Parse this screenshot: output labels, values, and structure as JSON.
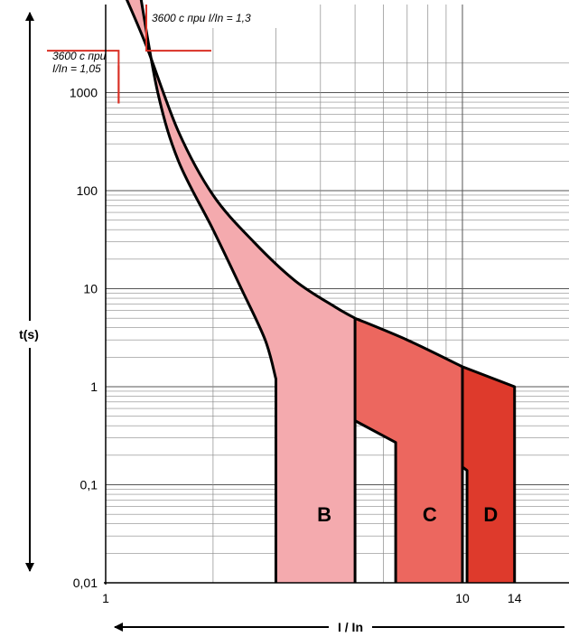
{
  "chart_data": {
    "type": "area",
    "xlabel": "I / In",
    "ylabel": "t(s)",
    "x_scale": "log",
    "y_scale": "log",
    "xlim": [
      1,
      20
    ],
    "ylim": [
      0.01,
      10000
    ],
    "grid": true,
    "x_ticks": [
      {
        "value": 1,
        "label": "1"
      },
      {
        "value": 10,
        "label": "10"
      },
      {
        "value": 14,
        "label": "14"
      }
    ],
    "y_ticks": [
      {
        "value": 1000,
        "label": "1000"
      },
      {
        "value": 100,
        "label": "100"
      },
      {
        "value": 10,
        "label": "10"
      },
      {
        "value": 1,
        "label": "1"
      },
      {
        "value": 0.1,
        "label": "0,1"
      },
      {
        "value": 0.01,
        "label": "0,01"
      }
    ],
    "annotations": [
      {
        "text": "3600 с при I/In = 1,3",
        "x": 1.3,
        "y": 3600
      },
      {
        "text": "3600 с при I/In = 1,05",
        "x": 1.05,
        "y": 3600
      }
    ],
    "series": [
      {
        "name": "B",
        "color": "#f4aaae",
        "upper": [
          [
            1.13,
            10000
          ],
          [
            1.3,
            3000
          ],
          [
            1.6,
            400
          ],
          [
            2,
            90
          ],
          [
            2.6,
            30
          ],
          [
            3.4,
            12
          ],
          [
            4.4,
            6.5
          ],
          [
            5,
            5
          ]
        ],
        "lower": [
          [
            1.25,
            10000
          ],
          [
            1.4,
            1000
          ],
          [
            1.6,
            200
          ],
          [
            2,
            40
          ],
          [
            2.4,
            10
          ],
          [
            2.8,
            3
          ],
          [
            3,
            1.2
          ]
        ],
        "trip_low": 3,
        "trip_high": 5
      },
      {
        "name": "C",
        "color": "#ec675f",
        "upper": [
          [
            5,
            5
          ],
          [
            7,
            3
          ],
          [
            10,
            1.6
          ]
        ],
        "lower": [
          [
            5,
            0.45
          ],
          [
            6.5,
            0.27
          ]
        ],
        "trip_low": 6.5,
        "trip_high": 10
      },
      {
        "name": "D",
        "color": "#de3a2c",
        "upper": [
          [
            10,
            1.6
          ],
          [
            14,
            1
          ]
        ],
        "lower": [
          [
            10,
            0.15
          ]
        ],
        "trip_low": 10.3,
        "trip_high": 14
      }
    ]
  }
}
